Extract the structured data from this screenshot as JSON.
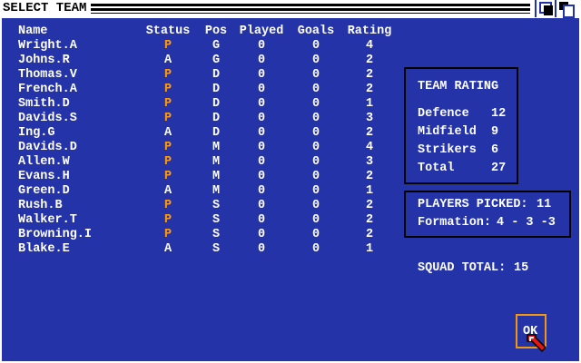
{
  "window": {
    "title": "SELECT TEAM"
  },
  "table": {
    "headers": [
      "Name",
      "Status",
      "Pos",
      "Played",
      "Goals",
      "Rating"
    ],
    "rows": [
      [
        "Wright.A",
        "P",
        "G",
        "0",
        "0",
        "4"
      ],
      [
        "Johns.R",
        "A",
        "G",
        "0",
        "0",
        "2"
      ],
      [
        "Thomas.V",
        "P",
        "D",
        "0",
        "0",
        "2"
      ],
      [
        "French.A",
        "P",
        "D",
        "0",
        "0",
        "2"
      ],
      [
        "Smith.D",
        "P",
        "D",
        "0",
        "0",
        "1"
      ],
      [
        "Davids.S",
        "P",
        "D",
        "0",
        "0",
        "3"
      ],
      [
        "Ing.G",
        "A",
        "D",
        "0",
        "0",
        "2"
      ],
      [
        "Davids.D",
        "P",
        "M",
        "0",
        "0",
        "4"
      ],
      [
        "Allen.W",
        "P",
        "M",
        "0",
        "0",
        "3"
      ],
      [
        "Evans.H",
        "P",
        "M",
        "0",
        "0",
        "2"
      ],
      [
        "Green.D",
        "A",
        "M",
        "0",
        "0",
        "1"
      ],
      [
        "Rush.B",
        "P",
        "S",
        "0",
        "0",
        "2"
      ],
      [
        "Walker.T",
        "P",
        "S",
        "0",
        "0",
        "2"
      ],
      [
        "Browning.I",
        "P",
        "S",
        "0",
        "0",
        "2"
      ],
      [
        "Blake.E",
        "A",
        "S",
        "0",
        "0",
        "1"
      ]
    ]
  },
  "team_rating": {
    "title": "TEAM RATING",
    "rows": [
      {
        "label": "Defence",
        "value": "12"
      },
      {
        "label": "Midfield",
        "value": "9"
      },
      {
        "label": "Strikers",
        "value": "6"
      },
      {
        "label": "Total",
        "value": "27"
      }
    ]
  },
  "picked": {
    "label": "PLAYERS PICKED:",
    "value": "11",
    "formation_label": "Formation:",
    "formation": "4 - 3 -3"
  },
  "squad": {
    "label": "SQUAD TOTAL:",
    "value": "15"
  },
  "ok_label": "OK",
  "colors": {
    "background": "#2434a8",
    "picked_status": "#ff9a10",
    "ok_border": "#f2960e"
  }
}
